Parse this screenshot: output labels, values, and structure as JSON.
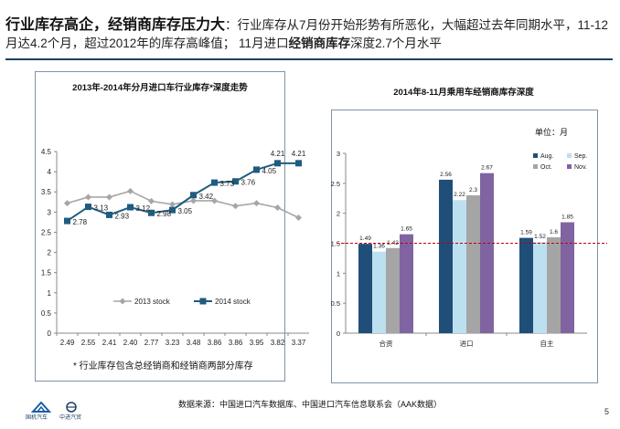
{
  "headline": {
    "title": "行业库存高企，经销商库存压力大",
    "colon": "：",
    "part1": "行业库存从7月份开始形势有所恶化，大幅超过去年同期水平，11-12月达4.2个月，超过2012年的库存高峰值； 11月进口",
    "bold_phrase": "经销商库存",
    "part2": "深度2.7个月水平"
  },
  "footnote": "* 行业库存包含总经销商和经销商两部分库存",
  "source": "数据来源：中国进口汽车数据库、中国进口汽车信息联系会（AAK数据）",
  "page_number": "5",
  "logos": [
    {
      "text": "国机汽车",
      "icon": "sinomach-auto-logo-icon"
    },
    {
      "text": "中进汽贸",
      "icon": "cniec-logo-icon"
    }
  ],
  "chart_data": [
    {
      "type": "line",
      "title": "2013年-2014年分月进口车行业库存*深度走势",
      "categories": [
        "2.49",
        "2.55",
        "2.41",
        "2.40",
        "2.77",
        "3.23",
        "3.48",
        "3.86",
        "3.86",
        "3.95",
        "3.82",
        "3.37"
      ],
      "ylim": [
        0,
        4.5
      ],
      "yticks": [
        "0",
        "0.5",
        "1",
        "1.5",
        "2",
        "2.5",
        "3",
        "3.5",
        "4",
        "4.5"
      ],
      "series": [
        {
          "name": "2013 stock",
          "color": "#a6a6a6",
          "marker": "diamond",
          "values": [
            3.22,
            3.37,
            3.37,
            3.52,
            3.27,
            3.19,
            3.28,
            3.28,
            3.15,
            3.22,
            3.11,
            2.86
          ]
        },
        {
          "name": "2014 stock",
          "color": "#1f5c80",
          "marker": "square",
          "values": [
            2.78,
            3.13,
            2.93,
            3.12,
            2.98,
            3.05,
            3.42,
            3.73,
            3.76,
            4.05,
            4.21,
            4.21
          ],
          "data_labels": [
            "2.78",
            "3.13",
            "2.93",
            "3.12",
            "2.98",
            "3.05",
            "3.42",
            "3.73",
            "3.76",
            "4.05",
            "4.21",
            "4.21"
          ]
        }
      ],
      "legend": "bottom-right",
      "grid": false
    },
    {
      "type": "bar",
      "title": "2014年8-11月乘用车经销商库存深度",
      "unit_label": "单位：月",
      "categories": [
        "合资",
        "进口",
        "自主"
      ],
      "ylim": [
        0,
        3
      ],
      "yticks": [
        "0",
        "0.5",
        "1",
        "1.5",
        "2",
        "2.5",
        "3"
      ],
      "series": [
        {
          "name": "Aug.",
          "color": "#1f4e79",
          "values": [
            1.49,
            2.56,
            1.59
          ]
        },
        {
          "name": "Sep.",
          "color": "#bde0f0",
          "values": [
            1.36,
            2.22,
            1.52
          ]
        },
        {
          "name": "Oct.",
          "color": "#a5a5a5",
          "values": [
            1.42,
            2.3,
            1.6
          ]
        },
        {
          "name": "Nov.",
          "color": "#8064a2",
          "values": [
            1.65,
            2.67,
            1.85
          ]
        }
      ],
      "reference_line": {
        "value": 1.5,
        "color": "#c00000",
        "style": "dashed"
      },
      "legend": "top-right",
      "grid": false
    }
  ]
}
